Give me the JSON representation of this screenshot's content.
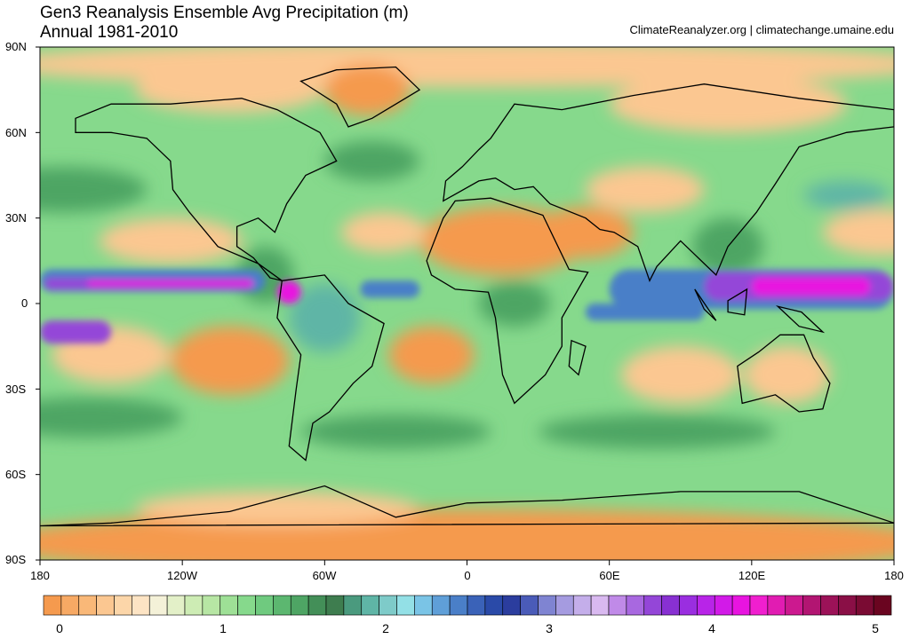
{
  "header": {
    "title_line1": "Gen3 Reanalysis Ensemble Avg Precipitation (m)",
    "title_line2": "Annual 1981-2010",
    "credit": "ClimateReanalyzer.org | climatechange.umaine.edu"
  },
  "axes": {
    "lat_labels": [
      "90N",
      "60N",
      "30N",
      "0",
      "30S",
      "60S",
      "90S"
    ],
    "lon_labels": [
      "180",
      "120W",
      "60W",
      "0",
      "60E",
      "120E",
      "180"
    ]
  },
  "colorbar": {
    "ticks": [
      "0",
      "1",
      "2",
      "3",
      "4",
      "5"
    ],
    "colors": [
      "#f59a4e",
      "#f7a964",
      "#f9b878",
      "#fbc791",
      "#fcd6a9",
      "#fde4c4",
      "#f4f1d8",
      "#e3f0c8",
      "#cdecb4",
      "#b7e6a4",
      "#9ee096",
      "#86d98c",
      "#6fca7f",
      "#5cb770",
      "#4ea564",
      "#438f58",
      "#3e7d4f",
      "#4a9a7e",
      "#5fb5a6",
      "#7ecbc9",
      "#93e0e6",
      "#7ac4e6",
      "#5f9fd8",
      "#4a7fc8",
      "#3a62b8",
      "#2a4aa8",
      "#2b3d9e",
      "#4a5bb8",
      "#7f84d2",
      "#a59be0",
      "#c4aeea",
      "#d9b9f0",
      "#c08ae8",
      "#a868e0",
      "#9446d8",
      "#8830d2",
      "#9a2ee0",
      "#b824e8",
      "#d21ae8",
      "#e814e0",
      "#f01fcf",
      "#e11cb2",
      "#cc198f",
      "#b21572",
      "#9c1258",
      "#8a0f46",
      "#7a0b33",
      "#6a0520"
    ]
  },
  "map_colors": {
    "dry": "#f59a4e",
    "semi_dry": "#fbc791",
    "light_green": "#b7e6a4",
    "green": "#86d98c",
    "dark_green": "#4ea564",
    "teal": "#5fb5a6",
    "blue": "#4a7fc8",
    "violet": "#9446d8",
    "magenta": "#e814e0",
    "land_outline": "#000000"
  }
}
